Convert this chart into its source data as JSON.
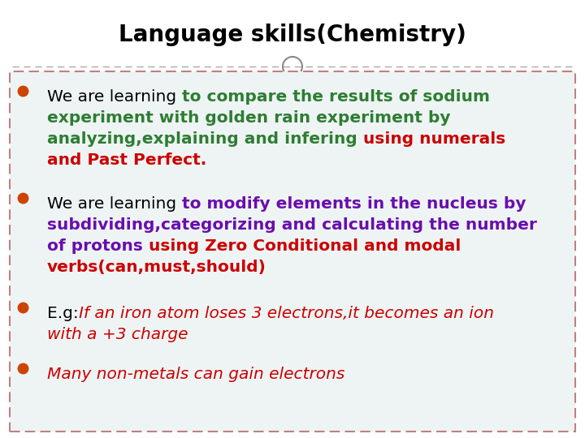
{
  "title": "Language skills(Chemistry)",
  "title_fontsize": 20,
  "title_color": "#000000",
  "bg_color": "#ffffff",
  "content_bg": "#eef4f4",
  "border_color_dashed": "#c08080",
  "separator_color": "#aaaaaa",
  "circle_color": "#888888",
  "bullet_color": "#cc4400",
  "figsize": [
    7.2,
    5.4
  ],
  "dpi": 100,
  "lines": [
    [
      {
        "text": "We are learning ",
        "color": "#000000",
        "bold": false,
        "italic": false
      },
      {
        "text": "to compare the results of sodium\nexperiment with golden rain experiment by\nanalyzing,explaining and infering ",
        "color": "#2e7d32",
        "bold": true,
        "italic": false
      },
      {
        "text": "using numerals\nand Past Perfect.",
        "color": "#cc0000",
        "bold": true,
        "italic": false
      }
    ],
    [
      {
        "text": "We are learning ",
        "color": "#000000",
        "bold": false,
        "italic": false
      },
      {
        "text": "to modify elements in the nucleus by\nsubdividing,categorizing and calculating the number\nof protons ",
        "color": "#6a0dad",
        "bold": true,
        "italic": false
      },
      {
        "text": "using Zero Conditional and modal\nverbs(can,must,should)",
        "color": "#cc0000",
        "bold": true,
        "italic": false
      }
    ],
    [
      {
        "text": "E.g:",
        "color": "#000000",
        "bold": false,
        "italic": false
      },
      {
        "text": "If an iron atom loses 3 electrons,it becomes an ion\nwith a +3 charge",
        "color": "#cc0000",
        "bold": false,
        "italic": true
      }
    ],
    [
      {
        "text": "Many non-metals can gain electrons",
        "color": "#cc0000",
        "bold": false,
        "italic": true
      }
    ]
  ]
}
